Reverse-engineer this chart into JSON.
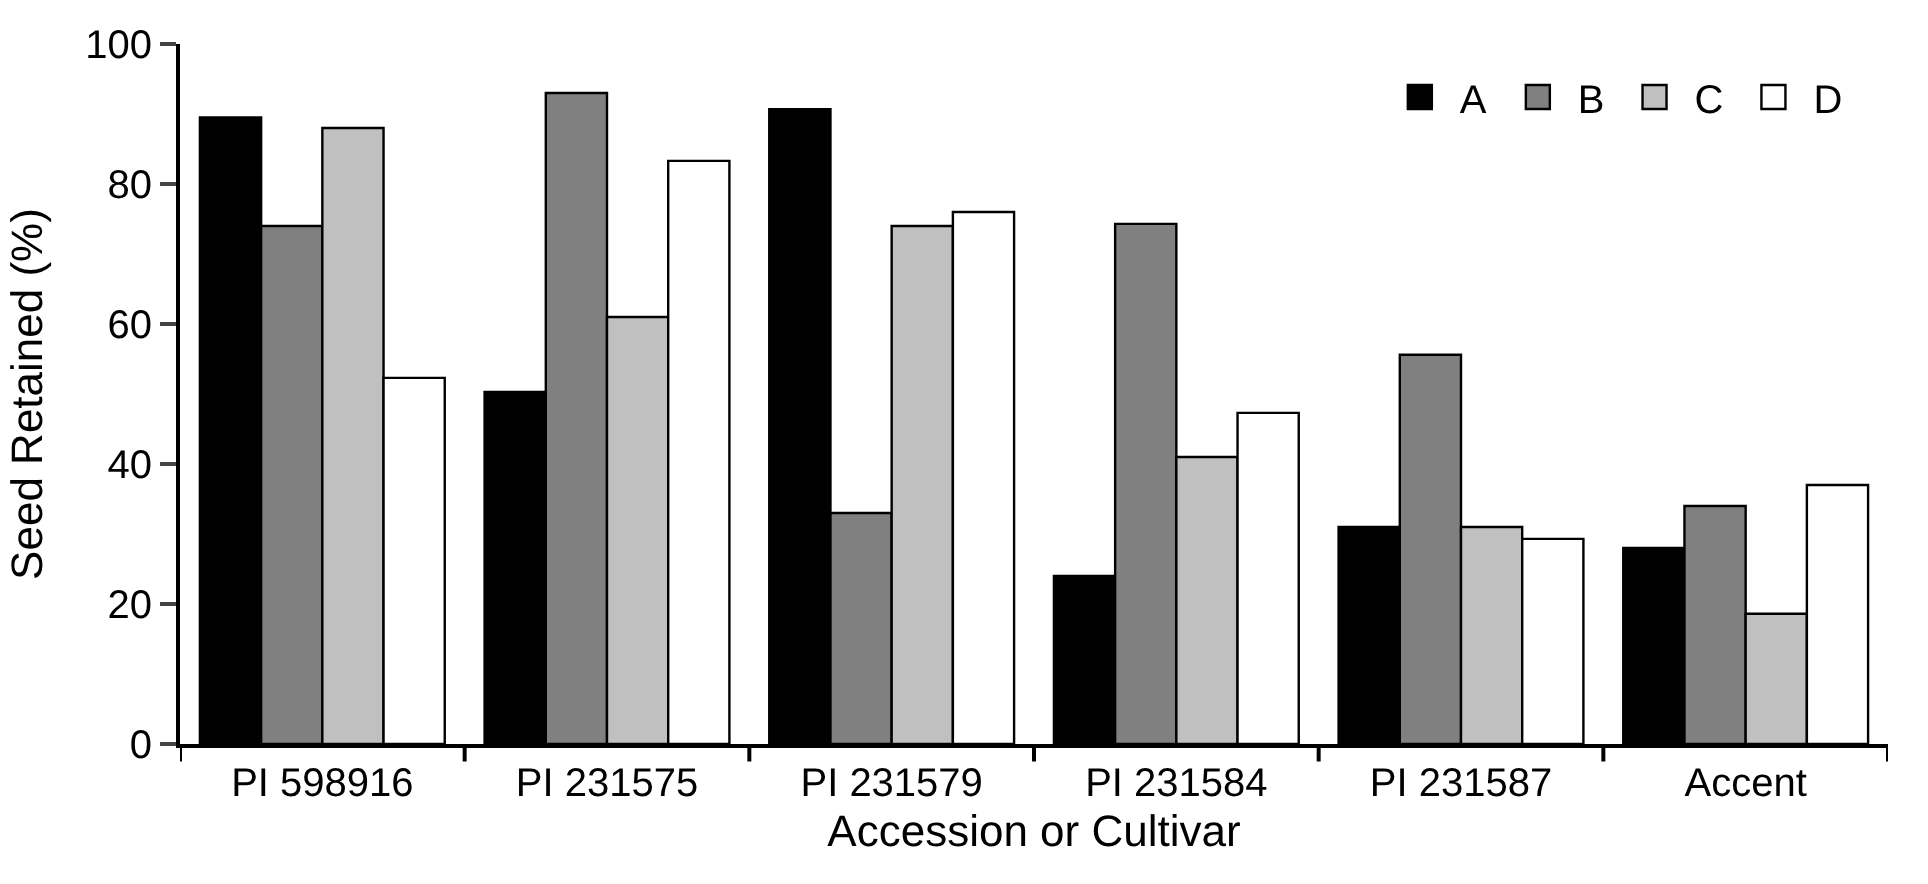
{
  "chart_data": {
    "type": "bar",
    "xlabel": "Accession or Cultivar",
    "ylabel": "Seed Retained (%)",
    "categories": [
      "PI 598916",
      "PI 231575",
      "PI 231579",
      "PI 231584",
      "PI 231587",
      "Accent"
    ],
    "series": [
      {
        "name": "A",
        "color": "#000000",
        "values": [
          89.5,
          50.3,
          90.7,
          24,
          31,
          28
        ]
      },
      {
        "name": "B",
        "color": "#808080",
        "values": [
          74,
          93,
          33,
          74.3,
          55.6,
          34
        ]
      },
      {
        "name": "C",
        "color": "#c0c0c0",
        "values": [
          88,
          61,
          74,
          41,
          31,
          18.6
        ]
      },
      {
        "name": "D",
        "color": "#ffffff",
        "values": [
          52.3,
          83.3,
          76,
          47.3,
          29.3,
          37
        ]
      }
    ],
    "ylim": [
      0,
      100
    ],
    "yticks": [
      0,
      20,
      40,
      60,
      80,
      100
    ],
    "legend": "top right"
  }
}
